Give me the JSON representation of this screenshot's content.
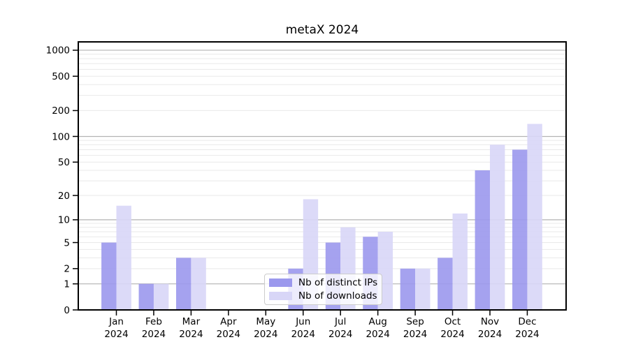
{
  "title": "metaX 2024",
  "legend": {
    "items": [
      {
        "label": "Nb of distinct IPs",
        "color": "#9b98ed"
      },
      {
        "label": "Nb of downloads",
        "color": "#d8d6f7"
      }
    ]
  },
  "chart_data": {
    "type": "bar",
    "title": "metaX 2024",
    "categories": [
      "Jan",
      "Feb",
      "Mar",
      "Apr",
      "May",
      "Jun",
      "Jul",
      "Aug",
      "Sep",
      "Oct",
      "Nov",
      "Dec"
    ],
    "category_year": "2024",
    "series": [
      {
        "name": "Nb of distinct IPs",
        "color": "#9b98ed",
        "values": [
          5,
          1,
          3,
          0,
          0,
          2,
          5,
          6,
          2,
          3,
          40,
          70
        ]
      },
      {
        "name": "Nb of downloads",
        "color": "#d8d6f7",
        "values": [
          15,
          1,
          3,
          0,
          0,
          18,
          8,
          7,
          2,
          12,
          80,
          140
        ]
      }
    ],
    "yscale": "log1p",
    "yticks": [
      0,
      1,
      2,
      5,
      10,
      20,
      50,
      100,
      200,
      500,
      1000
    ],
    "ylim": [
      0,
      1250
    ],
    "grid": {
      "major_lines_at": [
        1,
        10,
        100,
        1000
      ],
      "minor_lines": "2-9 per decade"
    },
    "legend_position": "inside lower center"
  },
  "colors": {
    "major_grid": "#b3b3b3",
    "minor_grid": "#e9e9e9",
    "spine": "#000000",
    "background": "#ffffff"
  }
}
